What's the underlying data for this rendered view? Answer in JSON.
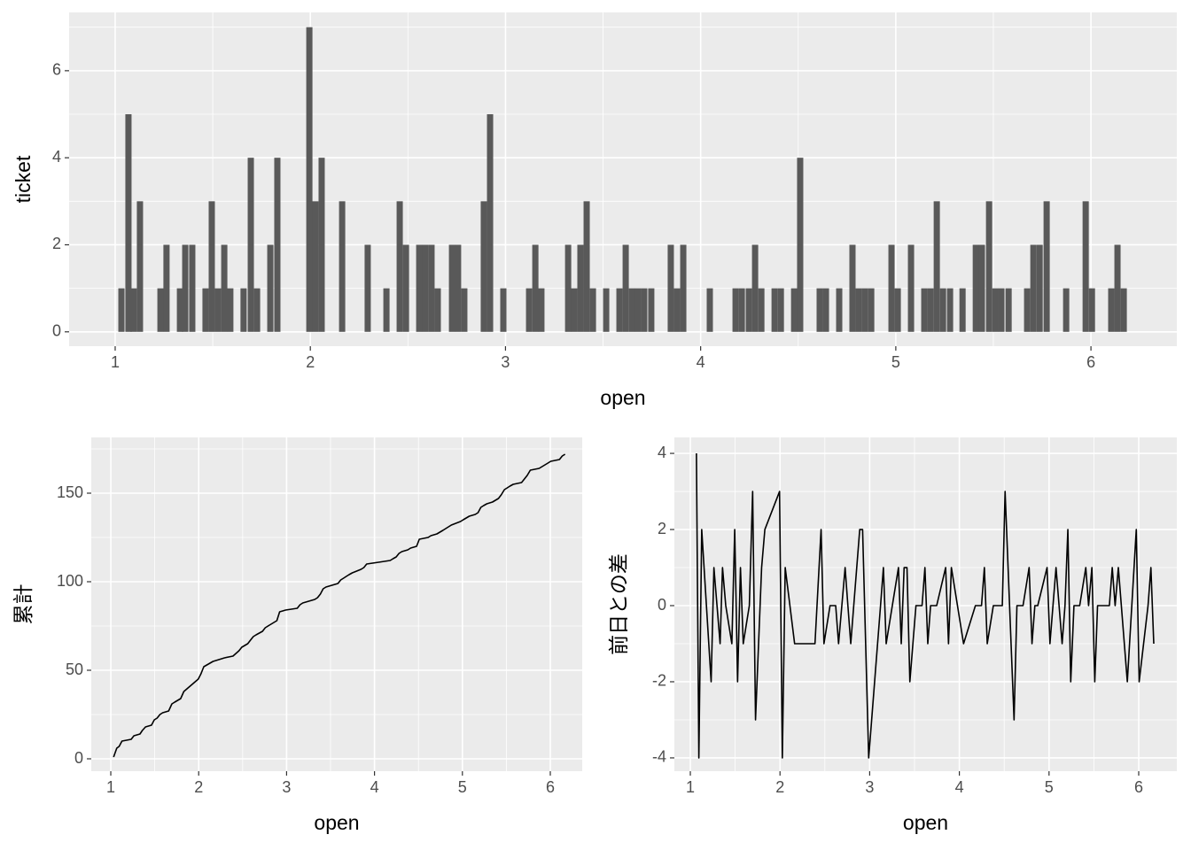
{
  "chart_data": [
    {
      "type": "bar",
      "xlabel": "open",
      "ylabel": "ticket",
      "color": "#595959",
      "grid": true,
      "x": [
        1.032,
        1.068,
        1.095,
        1.127,
        1.232,
        1.263,
        1.332,
        1.359,
        1.395,
        1.463,
        1.495,
        1.527,
        1.559,
        1.59,
        1.658,
        1.695,
        1.727,
        1.795,
        1.831,
        1.995,
        2.026,
        2.058,
        2.163,
        2.294,
        2.39,
        2.458,
        2.49,
        2.558,
        2.589,
        2.621,
        2.653,
        2.726,
        2.757,
        2.789,
        2.889,
        2.921,
        2.989,
        3.121,
        3.153,
        3.184,
        3.321,
        3.352,
        3.384,
        3.416,
        3.448,
        3.516,
        3.584,
        3.616,
        3.648,
        3.679,
        3.711,
        3.747,
        3.847,
        3.879,
        3.911,
        4.047,
        4.179,
        4.211,
        4.247,
        4.279,
        4.311,
        4.379,
        4.411,
        4.479,
        4.51,
        4.61,
        4.642,
        4.71,
        4.778,
        4.81,
        4.842,
        4.874,
        4.978,
        5.01,
        5.078,
        5.146,
        5.178,
        5.21,
        5.242,
        5.278,
        5.342,
        5.41,
        5.441,
        5.478,
        5.51,
        5.541,
        5.578,
        5.673,
        5.705,
        5.737,
        5.773,
        5.873,
        5.973,
        6.005,
        6.104,
        6.136,
        6.168
      ],
      "values": [
        1,
        5,
        1,
        3,
        1,
        2,
        1,
        2,
        2,
        1,
        3,
        1,
        2,
        1,
        1,
        4,
        1,
        2,
        4,
        7,
        3,
        4,
        3,
        2,
        1,
        3,
        2,
        2,
        2,
        2,
        1,
        2,
        2,
        1,
        3,
        5,
        1,
        1,
        2,
        1,
        2,
        1,
        2,
        3,
        1,
        1,
        1,
        2,
        1,
        1,
        1,
        1,
        2,
        1,
        2,
        1,
        1,
        1,
        1,
        2,
        1,
        1,
        1,
        1,
        4,
        1,
        1,
        1,
        2,
        1,
        1,
        1,
        2,
        1,
        2,
        1,
        1,
        3,
        1,
        1,
        1,
        2,
        2,
        3,
        1,
        1,
        1,
        1,
        2,
        2,
        3,
        1,
        3,
        1,
        1,
        2,
        1
      ],
      "xlim": [
        0.764,
        6.44
      ],
      "ylim": [
        -0.33,
        7.34
      ],
      "xticks": [
        1,
        2,
        3,
        4,
        5,
        6
      ],
      "yticks": [
        0,
        2,
        4,
        6
      ],
      "xminor": [
        1.5,
        2.5,
        3.5,
        4.5,
        5.5
      ],
      "yminor": [
        1,
        3,
        5,
        7
      ]
    },
    {
      "type": "line",
      "xlabel": "open",
      "ylabel": "累計",
      "color": "#000000",
      "grid": true,
      "x": [
        1.032,
        1.068,
        1.095,
        1.127,
        1.232,
        1.263,
        1.332,
        1.359,
        1.395,
        1.463,
        1.495,
        1.527,
        1.559,
        1.59,
        1.658,
        1.695,
        1.727,
        1.795,
        1.831,
        1.995,
        2.026,
        2.058,
        2.163,
        2.294,
        2.39,
        2.458,
        2.49,
        2.558,
        2.589,
        2.621,
        2.653,
        2.726,
        2.757,
        2.789,
        2.889,
        2.921,
        2.989,
        3.121,
        3.153,
        3.184,
        3.321,
        3.352,
        3.384,
        3.416,
        3.448,
        3.516,
        3.584,
        3.616,
        3.648,
        3.679,
        3.711,
        3.747,
        3.847,
        3.879,
        3.911,
        4.047,
        4.179,
        4.211,
        4.247,
        4.279,
        4.311,
        4.379,
        4.411,
        4.479,
        4.51,
        4.61,
        4.642,
        4.71,
        4.778,
        4.81,
        4.842,
        4.874,
        4.978,
        5.01,
        5.078,
        5.146,
        5.178,
        5.21,
        5.242,
        5.278,
        5.342,
        5.41,
        5.441,
        5.478,
        5.51,
        5.541,
        5.578,
        5.673,
        5.705,
        5.737,
        5.773,
        5.873,
        5.973,
        6.005,
        6.104,
        6.136,
        6.168
      ],
      "values": [
        1,
        6,
        7,
        10,
        11,
        13,
        14,
        16,
        18,
        19,
        22,
        23,
        25,
        26,
        27,
        31,
        32,
        34,
        38,
        45,
        48,
        52,
        55,
        57,
        58,
        61,
        63,
        65,
        67,
        69,
        70,
        72,
        74,
        75,
        78,
        83,
        84,
        85,
        87,
        88,
        90,
        91,
        93,
        96,
        97,
        98,
        99,
        101,
        102,
        103,
        104,
        105,
        107,
        108,
        110,
        111,
        112,
        113,
        114,
        116,
        117,
        118,
        119,
        120,
        124,
        125,
        126,
        127,
        129,
        130,
        131,
        132,
        134,
        135,
        137,
        138,
        139,
        142,
        143,
        144,
        145,
        147,
        149,
        152,
        153,
        154,
        155,
        156,
        158,
        160,
        163,
        164,
        167,
        168,
        169,
        171,
        172
      ],
      "xlim": [
        0.778,
        6.363
      ],
      "ylim": [
        -7,
        181.5
      ],
      "xticks": [
        1,
        2,
        3,
        4,
        5,
        6
      ],
      "yticks": [
        0,
        50,
        100,
        150
      ],
      "xminor": [
        1.5,
        2.5,
        3.5,
        4.5,
        5.5
      ],
      "yminor": [
        25,
        75,
        125,
        175
      ]
    },
    {
      "type": "line",
      "xlabel": "open",
      "ylabel": "前日との差",
      "color": "#000000",
      "grid": true,
      "x": [
        1.068,
        1.095,
        1.127,
        1.232,
        1.263,
        1.332,
        1.359,
        1.395,
        1.463,
        1.495,
        1.527,
        1.559,
        1.59,
        1.658,
        1.695,
        1.727,
        1.795,
        1.831,
        1.995,
        2.026,
        2.058,
        2.163,
        2.294,
        2.39,
        2.458,
        2.49,
        2.558,
        2.589,
        2.621,
        2.653,
        2.726,
        2.757,
        2.789,
        2.889,
        2.921,
        2.989,
        3.121,
        3.153,
        3.184,
        3.321,
        3.352,
        3.384,
        3.416,
        3.448,
        3.516,
        3.584,
        3.616,
        3.648,
        3.679,
        3.711,
        3.747,
        3.847,
        3.879,
        3.911,
        4.047,
        4.179,
        4.211,
        4.247,
        4.279,
        4.311,
        4.379,
        4.411,
        4.479,
        4.51,
        4.61,
        4.642,
        4.71,
        4.778,
        4.81,
        4.842,
        4.874,
        4.978,
        5.01,
        5.078,
        5.146,
        5.178,
        5.21,
        5.242,
        5.278,
        5.342,
        5.41,
        5.441,
        5.478,
        5.51,
        5.541,
        5.578,
        5.673,
        5.705,
        5.737,
        5.773,
        5.873,
        5.973,
        6.005,
        6.104,
        6.136,
        6.168
      ],
      "values": [
        4,
        -4,
        2,
        -2,
        1,
        -1,
        1,
        0,
        -1,
        2,
        -2,
        1,
        -1,
        0,
        3,
        -3,
        1,
        2,
        3,
        -4,
        1,
        -1,
        -1,
        -1,
        2,
        -1,
        0,
        0,
        0,
        -1,
        1,
        0,
        -1,
        2,
        2,
        -4,
        0,
        1,
        -1,
        1,
        -1,
        1,
        1,
        -2,
        0,
        0,
        1,
        -1,
        0,
        0,
        0,
        1,
        -1,
        1,
        -1,
        0,
        0,
        0,
        1,
        -1,
        0,
        0,
        0,
        3,
        -3,
        0,
        0,
        1,
        -1,
        0,
        0,
        1,
        -1,
        1,
        -1,
        0,
        2,
        -2,
        0,
        0,
        1,
        0,
        1,
        -2,
        0,
        0,
        0,
        1,
        0,
        1,
        -2,
        2,
        -2,
        0,
        1,
        -1
      ],
      "xlim": [
        0.822,
        6.425
      ],
      "ylim": [
        -4.35,
        4.42
      ],
      "xticks": [
        1,
        2,
        3,
        4,
        5,
        6
      ],
      "yticks": [
        -4,
        -2,
        0,
        2,
        4
      ],
      "xminor": [
        1.5,
        2.5,
        3.5,
        4.5,
        5.5
      ],
      "yminor": [
        -3,
        -1,
        1,
        3
      ]
    }
  ]
}
